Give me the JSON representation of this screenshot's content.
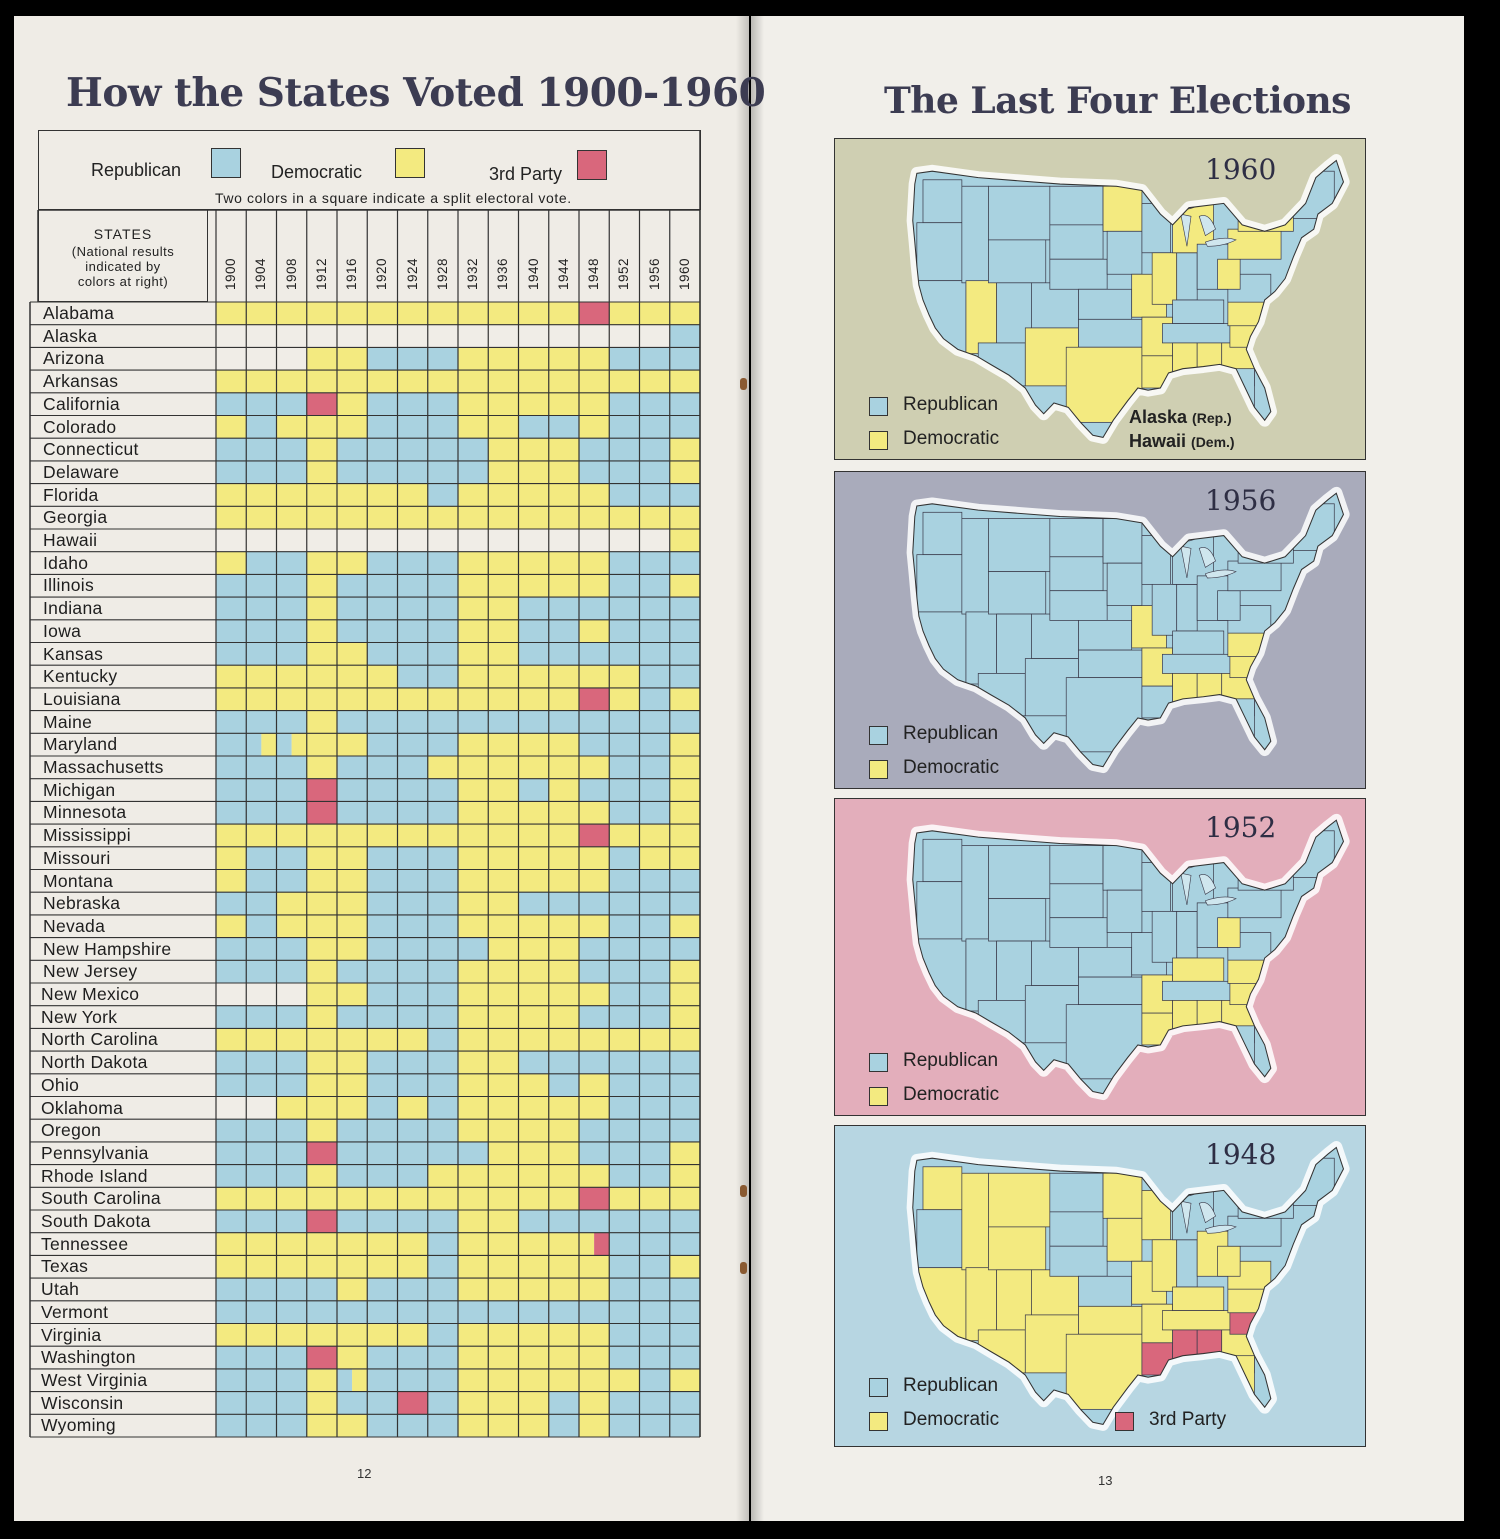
{
  "left_page": {
    "title": "How the States Voted 1900-1960",
    "legend": {
      "republican_label": "Republican",
      "democratic_label": "Democratic",
      "third_label": "3rd Party",
      "note": "Two colors in a square indicate a split electoral vote."
    },
    "states_header": {
      "line1": "STATES",
      "line2": "(National results",
      "line3": "indicated by",
      "line4": "colors at right)"
    },
    "page_number": "12"
  },
  "right_page": {
    "title": "The Last Four Elections",
    "page_number": "13",
    "maps": [
      {
        "year": "1960",
        "republican_label": "Republican",
        "democratic_label": "Democratic",
        "note1_main": "Alaska",
        "note1_small": "(Rep.)",
        "note2_main": "Hawaii",
        "note2_small": "(Dem.)"
      },
      {
        "year": "1956",
        "republican_label": "Republican",
        "democratic_label": "Democratic"
      },
      {
        "year": "1952",
        "republican_label": "Republican",
        "democratic_label": "Democratic"
      },
      {
        "year": "1948",
        "republican_label": "Republican",
        "democratic_label": "Democratic",
        "third_label": "3rd Party"
      }
    ]
  },
  "colors": {
    "republican": "#a9d2e0",
    "democratic": "#f3ea80",
    "third_party": "#d9677c",
    "empty": "#f0ede7",
    "map1960_bg": "#cfcfb2",
    "map1956_bg": "#a9abbb",
    "map1952_bg": "#e3aebb",
    "map1948_bg": "#b7d6e2"
  },
  "chart_data": {
    "type": "table",
    "years": [
      "1900",
      "1904",
      "1908",
      "1912",
      "1916",
      "1920",
      "1924",
      "1928",
      "1932",
      "1936",
      "1940",
      "1944",
      "1948",
      "1952",
      "1956",
      "1960"
    ],
    "national": [
      "R",
      "R",
      "R",
      "D",
      "D",
      "R",
      "R",
      "R",
      "D",
      "D",
      "D",
      "D",
      "D",
      "R",
      "R",
      "D"
    ],
    "states": [
      {
        "name": "Alabama",
        "votes": [
          "D",
          "D",
          "D",
          "D",
          "D",
          "D",
          "D",
          "D",
          "D",
          "D",
          "D",
          "D",
          "T",
          "D",
          "D",
          "D"
        ]
      },
      {
        "name": "Alaska",
        "votes": [
          "",
          "",
          "",
          "",
          "",
          "",
          "",
          "",
          "",
          "",
          "",
          "",
          "",
          "",
          "",
          "R"
        ]
      },
      {
        "name": "Arizona",
        "votes": [
          "",
          "",
          "",
          "D",
          "D",
          "R",
          "R",
          "R",
          "D",
          "D",
          "D",
          "D",
          "D",
          "R",
          "R",
          "R"
        ]
      },
      {
        "name": "Arkansas",
        "votes": [
          "D",
          "D",
          "D",
          "D",
          "D",
          "D",
          "D",
          "D",
          "D",
          "D",
          "D",
          "D",
          "D",
          "D",
          "D",
          "D"
        ]
      },
      {
        "name": "California",
        "votes": [
          "R",
          "R",
          "R",
          "T",
          "D",
          "R",
          "R",
          "R",
          "D",
          "D",
          "D",
          "D",
          "D",
          "R",
          "R",
          "R"
        ]
      },
      {
        "name": "Colorado",
        "votes": [
          "D",
          "R",
          "D",
          "D",
          "D",
          "R",
          "R",
          "R",
          "D",
          "D",
          "R",
          "R",
          "D",
          "R",
          "R",
          "R"
        ]
      },
      {
        "name": "Connecticut",
        "votes": [
          "R",
          "R",
          "R",
          "D",
          "R",
          "R",
          "R",
          "R",
          "R",
          "D",
          "D",
          "D",
          "R",
          "R",
          "R",
          "D"
        ]
      },
      {
        "name": "Delaware",
        "votes": [
          "R",
          "R",
          "R",
          "D",
          "R",
          "R",
          "R",
          "R",
          "R",
          "D",
          "D",
          "D",
          "R",
          "R",
          "R",
          "D"
        ]
      },
      {
        "name": "Florida",
        "votes": [
          "D",
          "D",
          "D",
          "D",
          "D",
          "D",
          "D",
          "R",
          "D",
          "D",
          "D",
          "D",
          "D",
          "R",
          "R",
          "R"
        ]
      },
      {
        "name": "Georgia",
        "votes": [
          "D",
          "D",
          "D",
          "D",
          "D",
          "D",
          "D",
          "D",
          "D",
          "D",
          "D",
          "D",
          "D",
          "D",
          "D",
          "D"
        ]
      },
      {
        "name": "Hawaii",
        "votes": [
          "",
          "",
          "",
          "",
          "",
          "",
          "",
          "",
          "",
          "",
          "",
          "",
          "",
          "",
          "",
          "D"
        ]
      },
      {
        "name": "Idaho",
        "votes": [
          "D",
          "R",
          "R",
          "D",
          "D",
          "R",
          "R",
          "R",
          "D",
          "D",
          "D",
          "D",
          "D",
          "R",
          "R",
          "R"
        ]
      },
      {
        "name": "Illinois",
        "votes": [
          "R",
          "R",
          "R",
          "D",
          "R",
          "R",
          "R",
          "R",
          "D",
          "D",
          "D",
          "D",
          "D",
          "R",
          "R",
          "D"
        ]
      },
      {
        "name": "Indiana",
        "votes": [
          "R",
          "R",
          "R",
          "D",
          "R",
          "R",
          "R",
          "R",
          "D",
          "D",
          "R",
          "R",
          "R",
          "R",
          "R",
          "R"
        ]
      },
      {
        "name": "Iowa",
        "votes": [
          "R",
          "R",
          "R",
          "D",
          "R",
          "R",
          "R",
          "R",
          "D",
          "D",
          "R",
          "R",
          "D",
          "R",
          "R",
          "R"
        ]
      },
      {
        "name": "Kansas",
        "votes": [
          "R",
          "R",
          "R",
          "D",
          "D",
          "R",
          "R",
          "R",
          "D",
          "D",
          "R",
          "R",
          "R",
          "R",
          "R",
          "R"
        ]
      },
      {
        "name": "Kentucky",
        "votes": [
          "D",
          "D",
          "D",
          "D",
          "D",
          "D",
          "R",
          "R",
          "D",
          "D",
          "D",
          "D",
          "D",
          "D",
          "R",
          "R"
        ]
      },
      {
        "name": "Louisiana",
        "votes": [
          "D",
          "D",
          "D",
          "D",
          "D",
          "D",
          "D",
          "D",
          "D",
          "D",
          "D",
          "D",
          "T",
          "D",
          "R",
          "D"
        ]
      },
      {
        "name": "Maine",
        "votes": [
          "R",
          "R",
          "R",
          "D",
          "R",
          "R",
          "R",
          "R",
          "R",
          "R",
          "R",
          "R",
          "R",
          "R",
          "R",
          "R"
        ]
      },
      {
        "name": "Maryland",
        "votes": [
          "R",
          "RD",
          "RD",
          "D",
          "D",
          "R",
          "R",
          "R",
          "D",
          "D",
          "D",
          "D",
          "R",
          "R",
          "R",
          "D"
        ]
      },
      {
        "name": "Massachusetts",
        "votes": [
          "R",
          "R",
          "R",
          "D",
          "R",
          "R",
          "R",
          "D",
          "D",
          "D",
          "D",
          "D",
          "D",
          "R",
          "R",
          "D"
        ]
      },
      {
        "name": "Michigan",
        "votes": [
          "R",
          "R",
          "R",
          "T",
          "R",
          "R",
          "R",
          "R",
          "D",
          "D",
          "R",
          "D",
          "R",
          "R",
          "R",
          "D"
        ]
      },
      {
        "name": "Minnesota",
        "votes": [
          "R",
          "R",
          "R",
          "T",
          "R",
          "R",
          "R",
          "R",
          "D",
          "D",
          "D",
          "D",
          "D",
          "R",
          "R",
          "D"
        ]
      },
      {
        "name": "Mississippi",
        "votes": [
          "D",
          "D",
          "D",
          "D",
          "D",
          "D",
          "D",
          "D",
          "D",
          "D",
          "D",
          "D",
          "T",
          "D",
          "D",
          "D"
        ]
      },
      {
        "name": "Missouri",
        "votes": [
          "D",
          "R",
          "R",
          "D",
          "D",
          "R",
          "R",
          "R",
          "D",
          "D",
          "D",
          "D",
          "D",
          "R",
          "D",
          "D"
        ]
      },
      {
        "name": "Montana",
        "votes": [
          "D",
          "R",
          "R",
          "D",
          "D",
          "R",
          "R",
          "R",
          "D",
          "D",
          "D",
          "D",
          "D",
          "R",
          "R",
          "R"
        ]
      },
      {
        "name": "Nebraska",
        "votes": [
          "R",
          "R",
          "D",
          "D",
          "D",
          "R",
          "R",
          "R",
          "D",
          "D",
          "R",
          "R",
          "R",
          "R",
          "R",
          "R"
        ]
      },
      {
        "name": "Nevada",
        "votes": [
          "D",
          "R",
          "D",
          "D",
          "D",
          "R",
          "R",
          "R",
          "D",
          "D",
          "D",
          "D",
          "D",
          "R",
          "R",
          "D"
        ]
      },
      {
        "name": "New Hampshire",
        "votes": [
          "R",
          "R",
          "R",
          "D",
          "D",
          "R",
          "R",
          "R",
          "R",
          "D",
          "D",
          "D",
          "R",
          "R",
          "R",
          "R"
        ]
      },
      {
        "name": "New Jersey",
        "votes": [
          "R",
          "R",
          "R",
          "D",
          "R",
          "R",
          "R",
          "R",
          "D",
          "D",
          "D",
          "D",
          "R",
          "R",
          "R",
          "D"
        ]
      },
      {
        "name": "New Mexico",
        "votes": [
          "",
          "",
          "",
          "D",
          "D",
          "R",
          "R",
          "R",
          "D",
          "D",
          "D",
          "D",
          "D",
          "R",
          "R",
          "D"
        ]
      },
      {
        "name": "New York",
        "votes": [
          "R",
          "R",
          "R",
          "D",
          "R",
          "R",
          "R",
          "R",
          "D",
          "D",
          "D",
          "D",
          "R",
          "R",
          "R",
          "D"
        ]
      },
      {
        "name": "North Carolina",
        "votes": [
          "D",
          "D",
          "D",
          "D",
          "D",
          "D",
          "D",
          "R",
          "D",
          "D",
          "D",
          "D",
          "D",
          "D",
          "D",
          "D"
        ]
      },
      {
        "name": "North Dakota",
        "votes": [
          "R",
          "R",
          "R",
          "D",
          "D",
          "R",
          "R",
          "R",
          "D",
          "D",
          "R",
          "R",
          "R",
          "R",
          "R",
          "R"
        ]
      },
      {
        "name": "Ohio",
        "votes": [
          "R",
          "R",
          "R",
          "D",
          "D",
          "R",
          "R",
          "R",
          "D",
          "D",
          "D",
          "R",
          "D",
          "R",
          "R",
          "R"
        ]
      },
      {
        "name": "Oklahoma",
        "votes": [
          "",
          "",
          "D",
          "D",
          "D",
          "R",
          "D",
          "R",
          "D",
          "D",
          "D",
          "D",
          "D",
          "R",
          "R",
          "R"
        ]
      },
      {
        "name": "Oregon",
        "votes": [
          "R",
          "R",
          "R",
          "D",
          "R",
          "R",
          "R",
          "R",
          "D",
          "D",
          "D",
          "D",
          "R",
          "R",
          "R",
          "R"
        ]
      },
      {
        "name": "Pennsylvania",
        "votes": [
          "R",
          "R",
          "R",
          "T",
          "R",
          "R",
          "R",
          "R",
          "R",
          "D",
          "D",
          "D",
          "R",
          "R",
          "R",
          "D"
        ]
      },
      {
        "name": "Rhode Island",
        "votes": [
          "R",
          "R",
          "R",
          "D",
          "R",
          "R",
          "R",
          "D",
          "D",
          "D",
          "D",
          "D",
          "D",
          "R",
          "R",
          "D"
        ]
      },
      {
        "name": "South Carolina",
        "votes": [
          "D",
          "D",
          "D",
          "D",
          "D",
          "D",
          "D",
          "D",
          "D",
          "D",
          "D",
          "D",
          "T",
          "D",
          "D",
          "D"
        ]
      },
      {
        "name": "South Dakota",
        "votes": [
          "R",
          "R",
          "R",
          "T",
          "R",
          "R",
          "R",
          "R",
          "D",
          "D",
          "R",
          "R",
          "R",
          "R",
          "R",
          "R"
        ]
      },
      {
        "name": "Tennessee",
        "votes": [
          "D",
          "D",
          "D",
          "D",
          "D",
          "D",
          "D",
          "R",
          "D",
          "D",
          "D",
          "D",
          "DT",
          "R",
          "R",
          "R"
        ]
      },
      {
        "name": "Texas",
        "votes": [
          "D",
          "D",
          "D",
          "D",
          "D",
          "D",
          "D",
          "R",
          "D",
          "D",
          "D",
          "D",
          "D",
          "R",
          "R",
          "D"
        ]
      },
      {
        "name": "Utah",
        "votes": [
          "R",
          "R",
          "R",
          "R",
          "D",
          "R",
          "R",
          "R",
          "D",
          "D",
          "D",
          "D",
          "D",
          "R",
          "R",
          "R"
        ]
      },
      {
        "name": "Vermont",
        "votes": [
          "R",
          "R",
          "R",
          "R",
          "R",
          "R",
          "R",
          "R",
          "R",
          "R",
          "R",
          "R",
          "R",
          "R",
          "R",
          "R"
        ]
      },
      {
        "name": "Virginia",
        "votes": [
          "D",
          "D",
          "D",
          "D",
          "D",
          "D",
          "D",
          "R",
          "D",
          "D",
          "D",
          "D",
          "D",
          "R",
          "R",
          "R"
        ]
      },
      {
        "name": "Washington",
        "votes": [
          "R",
          "R",
          "R",
          "T",
          "D",
          "R",
          "R",
          "R",
          "D",
          "D",
          "D",
          "D",
          "D",
          "R",
          "R",
          "R"
        ]
      },
      {
        "name": "West Virginia",
        "votes": [
          "R",
          "R",
          "R",
          "D",
          "RD",
          "R",
          "R",
          "R",
          "D",
          "D",
          "D",
          "D",
          "D",
          "D",
          "R",
          "D"
        ]
      },
      {
        "name": "Wisconsin",
        "votes": [
          "R",
          "R",
          "R",
          "D",
          "R",
          "R",
          "T",
          "R",
          "D",
          "D",
          "D",
          "R",
          "D",
          "R",
          "R",
          "R"
        ]
      },
      {
        "name": "Wyoming",
        "votes": [
          "R",
          "R",
          "R",
          "D",
          "D",
          "R",
          "R",
          "R",
          "D",
          "D",
          "D",
          "R",
          "D",
          "R",
          "R",
          "R"
        ]
      }
    ]
  }
}
